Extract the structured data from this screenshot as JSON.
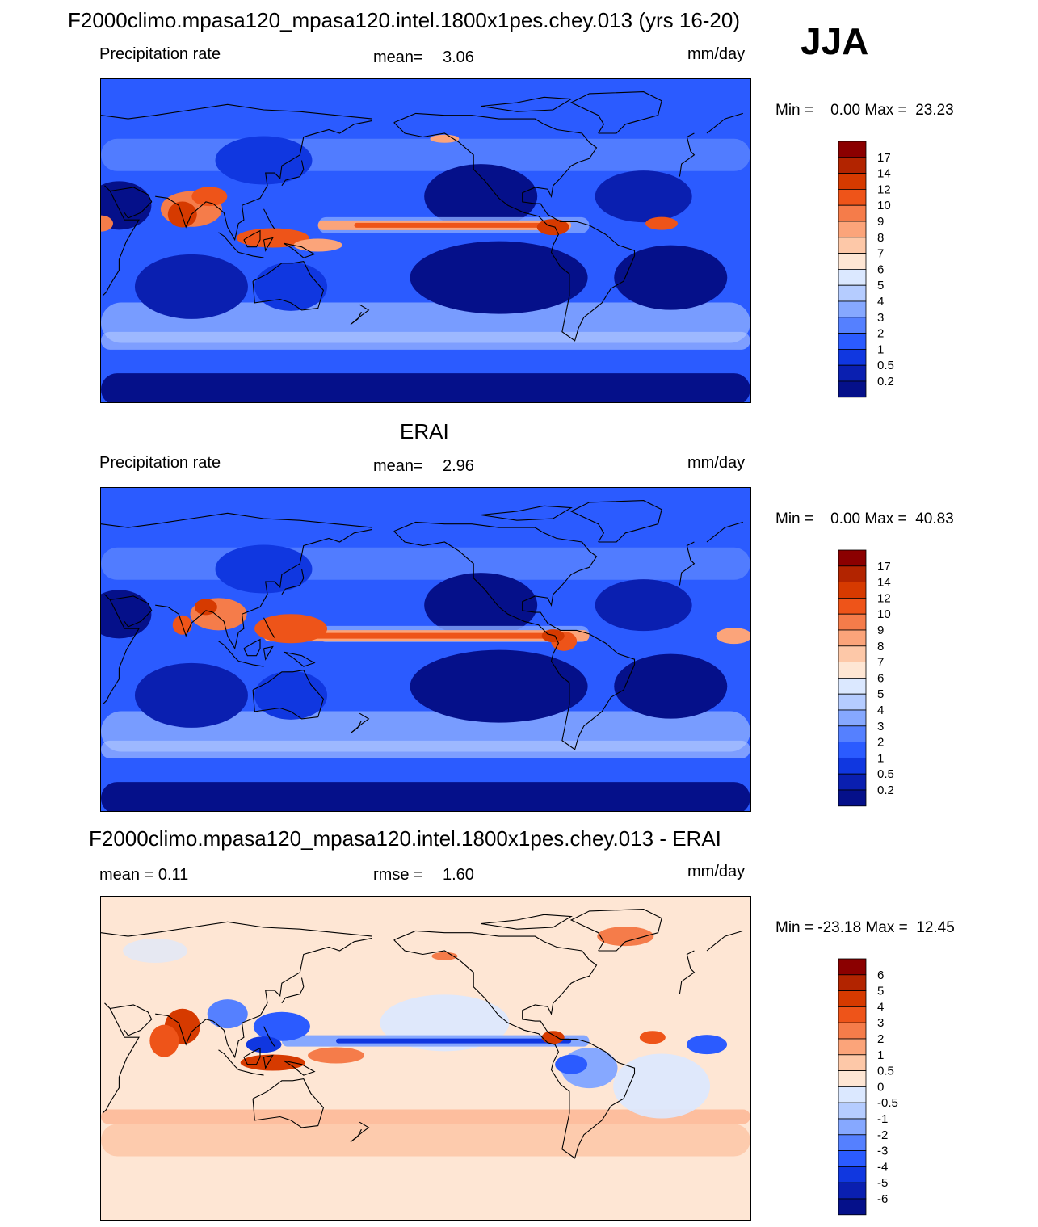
{
  "header": {
    "title": "F2000climo.mpasa120_mpasa120.intel.1800x1pes.chey.013 (yrs 16-20)",
    "season": "JJA"
  },
  "panels": [
    {
      "title": "",
      "left": "Precipitation rate",
      "center_label": "mean=",
      "center_value": "3.06",
      "units": "mm/day",
      "minmax": "Min =    0.00 Max =  23.23",
      "colorbar": {
        "labels": [
          "17",
          "14",
          "12",
          "10",
          "9",
          "8",
          "7",
          "6",
          "5",
          "4",
          "3",
          "2",
          "1",
          "0.5",
          "0.2"
        ],
        "colors": [
          "#8b0000",
          "#b22400",
          "#d63a00",
          "#ee5419",
          "#f57c4a",
          "#fba47a",
          "#fdc8a8",
          "#fee6d4",
          "#dbe8ff",
          "#b5ccff",
          "#86a8ff",
          "#5580ff",
          "#2b5bff",
          "#1037e0",
          "#0a1fb0",
          "#05108a"
        ]
      }
    },
    {
      "title": "ERAI",
      "left": "Precipitation rate",
      "center_label": "mean=",
      "center_value": "2.96",
      "units": "mm/day",
      "minmax": "Min =    0.00 Max =  40.83",
      "colorbar": {
        "labels": [
          "17",
          "14",
          "12",
          "10",
          "9",
          "8",
          "7",
          "6",
          "5",
          "4",
          "3",
          "2",
          "1",
          "0.5",
          "0.2"
        ],
        "colors": [
          "#8b0000",
          "#b22400",
          "#d63a00",
          "#ee5419",
          "#f57c4a",
          "#fba47a",
          "#fdc8a8",
          "#fee6d4",
          "#dbe8ff",
          "#b5ccff",
          "#86a8ff",
          "#5580ff",
          "#2b5bff",
          "#1037e0",
          "#0a1fb0",
          "#05108a"
        ]
      }
    },
    {
      "title": "F2000climo.mpasa120_mpasa120.intel.1800x1pes.chey.013 - ERAI",
      "left": "mean =   0.11",
      "center_label": "rmse =",
      "center_value": "1.60",
      "units": "mm/day",
      "minmax": "Min = -23.18 Max =  12.45",
      "colorbar": {
        "labels": [
          "6",
          "5",
          "4",
          "3",
          "2",
          "1",
          "0.5",
          "0",
          "-0.5",
          "-1",
          "-2",
          "-3",
          "-4",
          "-5",
          "-6"
        ],
        "colors": [
          "#8b0000",
          "#b22400",
          "#d63a00",
          "#ee5419",
          "#f57c4a",
          "#fba47a",
          "#fdc8a8",
          "#fee6d4",
          "#dbe8ff",
          "#b5ccff",
          "#86a8ff",
          "#5580ff",
          "#2b5bff",
          "#1037e0",
          "#0a1fb0",
          "#05108a"
        ]
      }
    }
  ],
  "chart_data": [
    {
      "type": "heatmap",
      "title": "F2000climo.mpasa120_mpasa120.intel.1800x1pes.chey.013 (yrs 16-20)",
      "subtitle": "Precipitation rate",
      "units": "mm/day",
      "mean": 3.06,
      "min": 0.0,
      "max": 23.23,
      "contour_levels": [
        0.2,
        0.5,
        1,
        2,
        3,
        4,
        5,
        6,
        7,
        8,
        9,
        10,
        12,
        14,
        17
      ]
    },
    {
      "type": "heatmap",
      "title": "ERAI",
      "subtitle": "Precipitation rate",
      "units": "mm/day",
      "mean": 2.96,
      "min": 0.0,
      "max": 40.83,
      "contour_levels": [
        0.2,
        0.5,
        1,
        2,
        3,
        4,
        5,
        6,
        7,
        8,
        9,
        10,
        12,
        14,
        17
      ]
    },
    {
      "type": "heatmap",
      "title": "F2000climo.mpasa120_mpasa120.intel.1800x1pes.chey.013 - ERAI",
      "units": "mm/day",
      "mean": 0.11,
      "rmse": 1.6,
      "min": -23.18,
      "max": 12.45,
      "contour_levels": [
        -6,
        -5,
        -4,
        -3,
        -2,
        -1,
        -0.5,
        0,
        0.5,
        1,
        2,
        3,
        4,
        5,
        6
      ]
    }
  ]
}
